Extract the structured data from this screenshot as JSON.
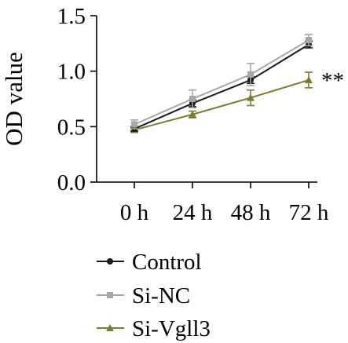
{
  "chart_data": {
    "type": "line",
    "title": "",
    "xlabel": "",
    "ylabel": "OD value",
    "categories": [
      "0 h",
      "24 h",
      "48 h",
      "72 h"
    ],
    "ylim": [
      0,
      1.5
    ],
    "yticks": [
      "0.0",
      "0.5",
      "1.0",
      "1.5"
    ],
    "grid": false,
    "legend_position": "bottom",
    "series": [
      {
        "name": "Control",
        "color": "#1a1a1a",
        "marker": "circle",
        "values": [
          0.48,
          0.71,
          0.92,
          1.24
        ],
        "errors": [
          0.02,
          0.03,
          0.03,
          0.03
        ]
      },
      {
        "name": "Si-NC",
        "color": "#a6a6a6",
        "marker": "square",
        "values": [
          0.52,
          0.75,
          0.97,
          1.28
        ],
        "errors": [
          0.04,
          0.08,
          0.1,
          0.05
        ]
      },
      {
        "name": "Si-Vgll3",
        "color": "#7b7b2c",
        "marker": "triangle",
        "values": [
          0.47,
          0.61,
          0.76,
          0.92
        ],
        "errors": [
          0.02,
          0.03,
          0.07,
          0.07
        ]
      }
    ],
    "annotations": [
      {
        "text": "**",
        "series": "Si-Vgll3",
        "category": "72 h"
      }
    ]
  }
}
